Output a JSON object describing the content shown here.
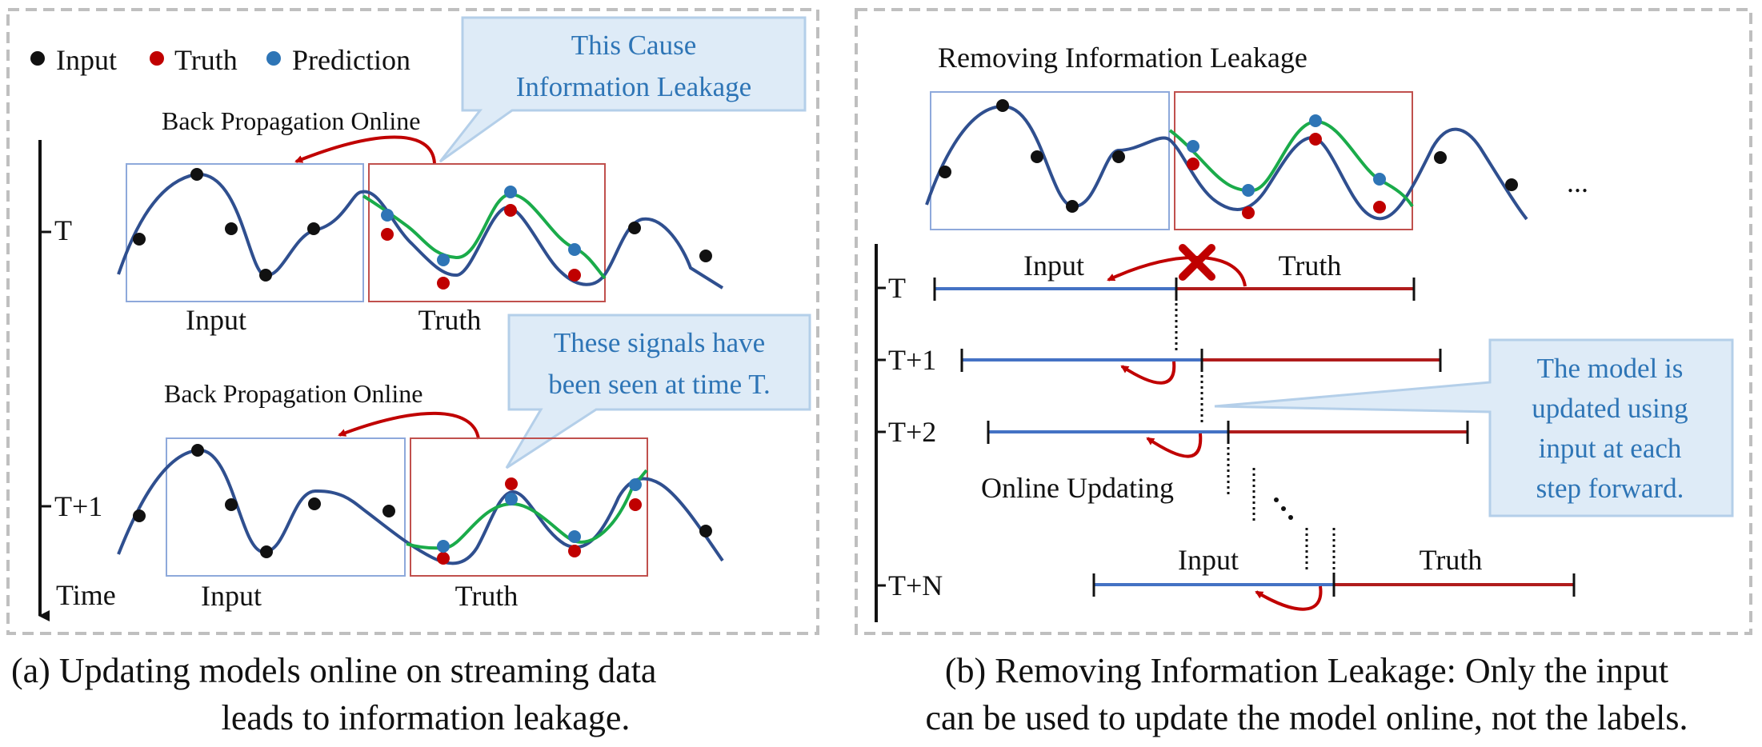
{
  "panel_a": {
    "legend": {
      "input": "Input",
      "truth": "Truth",
      "prediction": "Prediction"
    },
    "callout_top": [
      "This Cause",
      "Information Leakage"
    ],
    "callout_bottom": [
      "These signals have",
      "been seen at time T."
    ],
    "backprop_label_1": "Back Propagation Online",
    "backprop_label_2": "Back Propagation Online",
    "time_axis": {
      "label": "Time",
      "t": "T",
      "t1": "T+1"
    },
    "input_label_1": "Input",
    "truth_label_1": "Truth",
    "input_label_2": "Input",
    "truth_label_2": "Truth",
    "caption": [
      "(a) Updating models online on streaming data",
      "leads to information leakage."
    ]
  },
  "panel_b": {
    "title": "Removing Information Leakage",
    "ellipsis": "...",
    "rows": {
      "t": "T",
      "t1": "T+1",
      "t2": "T+2",
      "tn": "T+N"
    },
    "input_label": "Input",
    "truth_label": "Truth",
    "input_label_n": "Input",
    "truth_label_n": "Truth",
    "online_updating": "Online Updating",
    "callout": [
      "The model is",
      "updated using",
      "input at each",
      "step forward."
    ],
    "caption": [
      "(b) Removing Information Leakage: Only the input",
      "can be used to update the model online, not the labels."
    ]
  },
  "colors": {
    "signal": "#2f4f8f",
    "prediction_curve": "#1aab4a",
    "input_dot": "#111111",
    "truth_dot": "#c00000",
    "prediction_dot": "#2e75b6",
    "input_box": "#8ea9db",
    "truth_box": "#c0504d",
    "input_line": "#4472c4",
    "truth_line": "#b01c1c",
    "callout_fill": "#deebf7",
    "callout_text": "#2e75b6",
    "leak_mark": "#c00000"
  }
}
